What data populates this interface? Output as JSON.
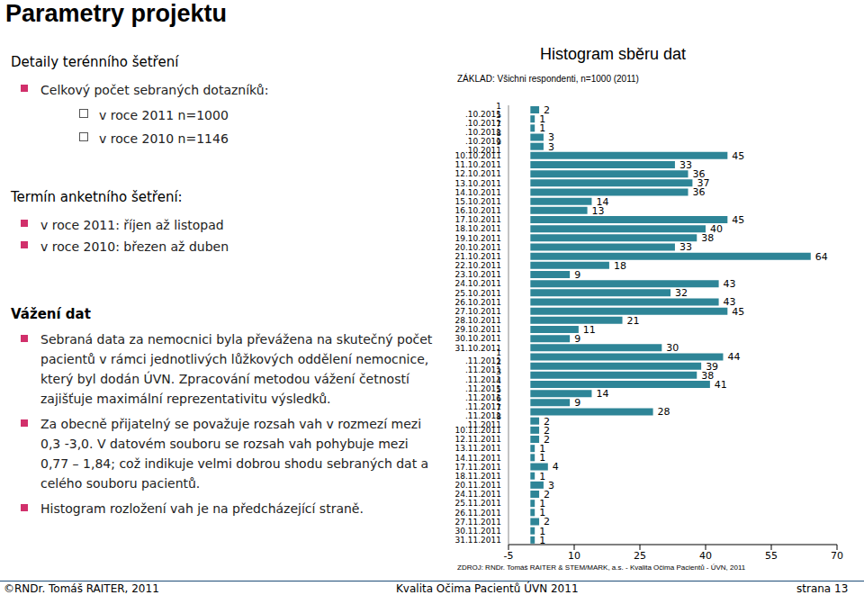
{
  "page": {
    "title": "Parametry projektu",
    "sections": [
      {
        "heading": "Detaily terénního šetření",
        "items": [
          {
            "text": "Celkový počet sebraných dotazníků:",
            "subitems": [
              "v roce 2011 n=1000",
              "v roce 2010 n=1146"
            ]
          }
        ]
      },
      {
        "heading": "Termín anketního šetření:",
        "items": [
          {
            "text": "v roce 2011: říjen až listopad"
          },
          {
            "text": "v roce 2010: březen až duben"
          }
        ]
      },
      {
        "heading": "Vážení dat",
        "items": [
          {
            "text": "Sebraná data za nemocnici byla převážena na skutečný počet pacientů v rámci jednotlivých lůžkových oddělení nemocnice, který byl dodán ÚVN. Zpracování metodou vážení četností zajišťuje maximální reprezentativitu výsledků."
          },
          {
            "text": "Za obecně přijatelný se považuje rozsah vah v rozmezí mezi 0,3 -3,0. V datovém souboru se rozsah vah pohybuje mezi 0,77 – 1,84; což indikuje velmi dobrou shodu sebraných dat a celého souboru pacientů."
          },
          {
            "text": "Histogram rozložení vah je na předcházející straně."
          }
        ]
      }
    ],
    "footer": {
      "left": "©RNDr. Tomáš RAITER, 2011",
      "center": "Kvalita Očima Pacientů ÚVN 2011",
      "right": "strana 13"
    }
  },
  "chart_data": {
    "type": "bar",
    "title": "Histogram sběru dat",
    "subtitle": "ZÁKLAD: Všichni respondenti, n=1000 (2011)",
    "source": "ZDROJ: RNDr. Tomáš RAITER & STEM/MARK, a.s. - Kvalita Očima Pacientů - ÚVN, 2011",
    "orientation": "horizontal",
    "color": "#2e8597",
    "data_labels": true,
    "grid": false,
    "categories": [
      "1 .10.2011",
      "5 .10.2011",
      "7 .10.2011",
      "8 .10.2011",
      "9 .10.2011",
      "10.10.2011",
      "11.10.2011",
      "12.10.2011",
      "13.10.2011",
      "14.10.2011",
      "15.10.2011",
      "16.10.2011",
      "17.10.2011",
      "18.10.2011",
      "19.10.2011",
      "20.10.2011",
      "21.10.2011",
      "22.10.2011",
      "23.10.2011",
      "24.10.2011",
      "25.10.2011",
      "26.10.2011",
      "27.10.2011",
      "28.10.2011",
      "29.10.2011",
      "30.10.2011",
      "31.10.2011",
      "1 .11.2011",
      "2 .11.2011",
      "3 .11.2011",
      "4 .11.2011",
      "5 .11.2011",
      "6 .11.2011",
      "7 .11.2011",
      "8 .11.2011",
      "10.11.2011",
      "12.11.2011",
      "13.11.2011",
      "14.11.2011",
      "17.11.2011",
      "18.11.2011",
      "20.11.2011",
      "24.11.2011",
      "25.11.2011",
      "26.11.2011",
      "27.11.2011",
      "30.11.2011",
      "31.11.2011"
    ],
    "values": [
      2,
      1,
      1,
      3,
      3,
      45,
      33,
      36,
      37,
      36,
      14,
      13,
      45,
      40,
      38,
      33,
      64,
      18,
      9,
      43,
      32,
      43,
      45,
      21,
      11,
      9,
      30,
      44,
      39,
      38,
      41,
      14,
      9,
      28,
      2,
      2,
      2,
      1,
      1,
      4,
      1,
      3,
      2,
      1,
      1,
      2,
      1,
      1
    ],
    "xlim": [
      -5,
      70
    ],
    "xticks": [
      -5,
      10,
      25,
      40,
      55,
      70
    ]
  }
}
